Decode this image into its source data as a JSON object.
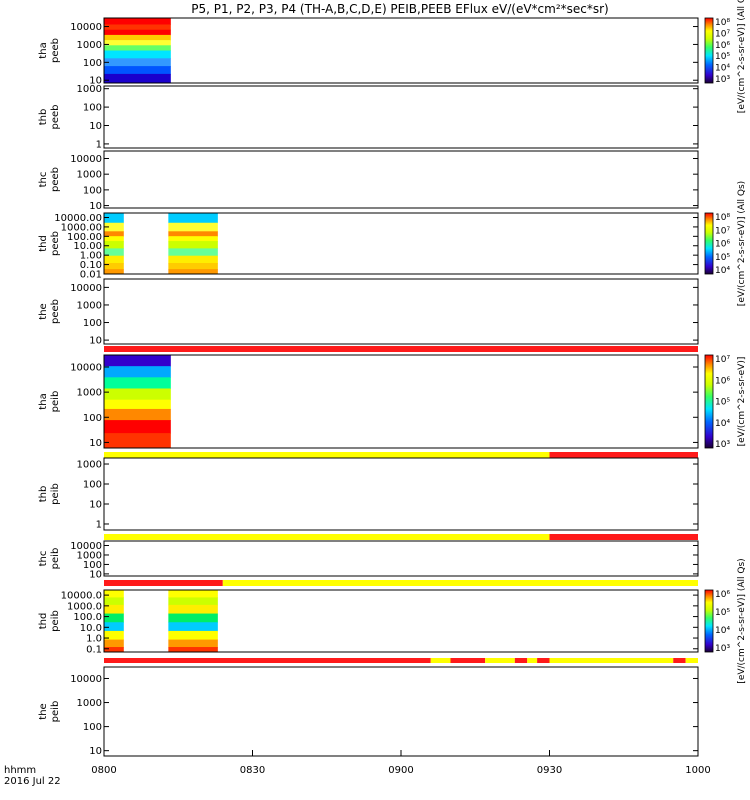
{
  "title": "P5, P1, P2, P3, P4 (TH-A,B,C,D,E) PEIB,PEEB EFlux eV/(eV*cm²*sec*sr)",
  "colorbar_labels": {
    "eflux_all_qs": "[eV/(cm^2-s-sr-eV)] (All Qs)",
    "eflux": "[eV/(cm^2-s-sr-eV)]"
  },
  "footer": {
    "hhmm_label": "hhmm",
    "date_label": "2016 Jul 22"
  },
  "colors": {
    "flag_red": "#ff1a1a",
    "flag_yellow": "#ffff00"
  },
  "chart_data": {
    "type": "heatmap",
    "x_axis": {
      "range": [
        "08:00",
        "10:00"
      ],
      "tick_labels": [
        "0800",
        "0830",
        "0900",
        "0930",
        "1000"
      ],
      "tick_minutes": [
        0,
        30,
        60,
        90,
        120
      ]
    },
    "panels": [
      {
        "probe": "tha",
        "product": "peeb",
        "log_y": true,
        "ytick_labels": [
          "10",
          "100",
          "1000",
          "10000"
        ],
        "ylim": [
          7,
          30000
        ],
        "data_intervals_min": [
          [
            0,
            13.5
          ]
        ],
        "palette": "eeb_a",
        "colorbar": {
          "ticks": [
            "10⁸",
            "10⁷",
            "10⁶",
            "10⁵",
            "10⁴",
            "10³"
          ],
          "label": "eflux_all_qs"
        },
        "flags": []
      },
      {
        "probe": "thb",
        "product": "peeb",
        "log_y": true,
        "ytick_labels": [
          "1",
          "10",
          "100",
          "1000"
        ],
        "ylim": [
          0.6,
          1400
        ],
        "data_intervals_min": [],
        "palette": "none",
        "colorbar": null,
        "flags": []
      },
      {
        "probe": "thc",
        "product": "peeb",
        "log_y": true,
        "ytick_labels": [
          "10",
          "100",
          "1000",
          "10000"
        ],
        "ylim": [
          7,
          30000
        ],
        "data_intervals_min": [],
        "palette": "none",
        "colorbar": null,
        "flags": []
      },
      {
        "probe": "thd",
        "product": "peeb",
        "log_y": true,
        "ytick_labels": [
          "0.01",
          "0.10",
          "1.00",
          "10.00",
          "100.00",
          "1000.00",
          "10000.00"
        ],
        "ylim": [
          0.01,
          30000
        ],
        "data_intervals_min": [
          [
            0,
            4
          ],
          [
            13,
            23
          ]
        ],
        "palette": "eeb_d",
        "colorbar": {
          "ticks": [
            "10⁸",
            "10⁷",
            "10⁶",
            "10⁵",
            "10⁴"
          ],
          "label": "eflux_all_qs"
        },
        "flags": []
      },
      {
        "probe": "the",
        "product": "peeb",
        "log_y": true,
        "ytick_labels": [
          "10",
          "100",
          "1000",
          "10000"
        ],
        "ylim": [
          6,
          30000
        ],
        "data_intervals_min": [],
        "palette": "none",
        "colorbar": null,
        "flags": [
          [
            0,
            120,
            "red"
          ]
        ]
      },
      {
        "probe": "tha",
        "product": "peib",
        "log_y": true,
        "ytick_labels": [
          "10",
          "100",
          "1000",
          "10000"
        ],
        "ylim": [
          6,
          30000
        ],
        "data_intervals_min": [
          [
            0,
            13.5
          ]
        ],
        "palette": "eib_a",
        "colorbar": {
          "ticks": [
            "10⁷",
            "10⁶",
            "10⁵",
            "10⁴",
            "10³"
          ],
          "label": "eflux"
        },
        "flags": [
          [
            0,
            90,
            "yellow"
          ],
          [
            90,
            120,
            "red"
          ]
        ]
      },
      {
        "probe": "thb",
        "product": "peib",
        "log_y": true,
        "ytick_labels": [
          "1",
          "10",
          "100",
          "1000"
        ],
        "ylim": [
          0.5,
          2000
        ],
        "data_intervals_min": [],
        "palette": "none",
        "colorbar": null,
        "flags": [
          [
            0,
            90,
            "yellow"
          ],
          [
            90,
            120,
            "red"
          ]
        ]
      },
      {
        "probe": "thc",
        "product": "peib",
        "log_y": true,
        "ytick_labels": [
          "10",
          "100",
          "1000",
          "10000"
        ],
        "ylim": [
          6,
          30000
        ],
        "data_intervals_min": [],
        "palette": "none",
        "colorbar": null,
        "flags": [
          [
            0,
            24,
            "red"
          ],
          [
            24,
            120,
            "yellow"
          ]
        ]
      },
      {
        "probe": "thd",
        "product": "peib",
        "log_y": true,
        "ytick_labels": [
          "0.1",
          "1.0",
          "10.0",
          "100.0",
          "1000.0",
          "10000.0"
        ],
        "ylim": [
          0.05,
          30000
        ],
        "data_intervals_min": [
          [
            0,
            4
          ],
          [
            13,
            23
          ]
        ],
        "palette": "eib_d",
        "colorbar": {
          "ticks": [
            "10⁶",
            "10⁵",
            "10⁴",
            "10³"
          ],
          "label": "eflux_all_qs"
        },
        "flags": [
          [
            0,
            66,
            "red"
          ],
          [
            66,
            70,
            "yellow"
          ],
          [
            70,
            77,
            "red"
          ],
          [
            77,
            83,
            "yellow"
          ],
          [
            83,
            85.5,
            "red"
          ],
          [
            85.5,
            87.5,
            "yellow"
          ],
          [
            87.5,
            90,
            "red"
          ],
          [
            90,
            115,
            "yellow"
          ],
          [
            115,
            117.5,
            "red"
          ],
          [
            117.5,
            120,
            "yellow"
          ]
        ]
      },
      {
        "probe": "the",
        "product": "peib",
        "log_y": true,
        "ytick_labels": [
          "10",
          "100",
          "1000",
          "10000"
        ],
        "ylim": [
          6,
          30000
        ],
        "data_intervals_min": [],
        "palette": "none",
        "colorbar": null,
        "flags": []
      }
    ]
  }
}
